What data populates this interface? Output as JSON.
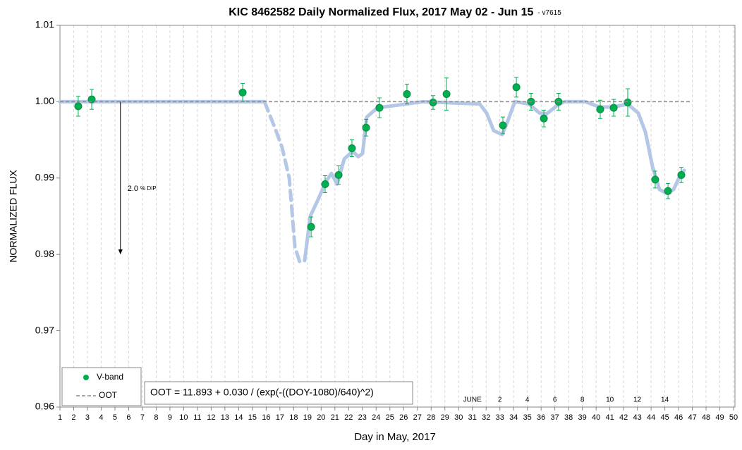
{
  "chart_data": {
    "type": "scatter",
    "title": "KIC 8462582 Daily Normalized Flux, 2017 May 02 - Jun 15",
    "subtitle": "- v7615",
    "x_label": "Day in May, 2017",
    "y_label": "NORMALIZED FLUX",
    "xlim": [
      1,
      50.1
    ],
    "ylim": [
      0.96,
      1.01
    ],
    "xticks": [
      1,
      2,
      3,
      4,
      5,
      6,
      7,
      8,
      9,
      10,
      11,
      12,
      13,
      14,
      15,
      16,
      17,
      18,
      19,
      20,
      21,
      22,
      23,
      24,
      25,
      26,
      27,
      28,
      29,
      30,
      31,
      32,
      33,
      34,
      35,
      36,
      37,
      38,
      39,
      40,
      41,
      42,
      43,
      44,
      45,
      46,
      47,
      48,
      49,
      50
    ],
    "yticks": [
      0.96,
      0.97,
      0.98,
      0.99,
      {
        "value": 1,
        "label": "1.00"
      },
      1.01
    ],
    "x_grid": true,
    "series": [
      {
        "name": "V-band",
        "color": "#00b050",
        "x": [
          2.33,
          3.31,
          14.29,
          19.27,
          20.29,
          21.27,
          22.24,
          23.27,
          24.24,
          26.24,
          28.14,
          29.12,
          33.22,
          34.2,
          35.27,
          36.2,
          37.27,
          40.3,
          41.28,
          42.3,
          44.3,
          45.23,
          46.2
        ],
        "values": [
          0.9994,
          1.0003,
          1.0012,
          0.9836,
          0.9892,
          0.9904,
          0.9939,
          0.9966,
          0.9992,
          1.001,
          0.9999,
          1.001,
          0.9969,
          1.0019,
          1.0,
          0.9978,
          1.0,
          0.999,
          0.9992,
          0.9999,
          0.9898,
          0.9883,
          0.9904
        ],
        "errors": [
          0.0013,
          0.0013,
          0.0012,
          0.0013,
          0.0011,
          0.0012,
          0.0011,
          0.0011,
          0.0013,
          0.0013,
          0.0009,
          0.0021,
          0.0011,
          0.0013,
          0.0011,
          0.0011,
          0.0011,
          0.0012,
          0.0011,
          0.0018,
          0.0011,
          0.001,
          0.001
        ]
      },
      {
        "name": "OOT",
        "color": "#8c8c8c",
        "dashed": true,
        "x": [
          1,
          46.9
        ],
        "values": [
          1,
          1
        ]
      }
    ],
    "curves": [
      {
        "color": "#b4c7e7",
        "dashed": false,
        "x": [
          1,
          15.88
        ],
        "values": [
          1,
          1
        ]
      },
      {
        "color": "#b4c7e7",
        "dashed": true,
        "x": [
          15.88,
          16.65,
          17.16,
          17.68,
          18.09,
          18.44,
          18.8
        ],
        "values": [
          1,
          0.9965,
          0.994,
          0.99,
          0.981,
          0.979,
          0.9792
        ]
      },
      {
        "color": "#b4c7e7",
        "dashed": false,
        "x": [
          18.8,
          19.21,
          19.73,
          20.34,
          20.75,
          21.16,
          21.68,
          22.29,
          22.7,
          23.01,
          23.32,
          24.09,
          25.37,
          27.42,
          31.53,
          32.04,
          32.55,
          33.17,
          33.58,
          34.09,
          35.12,
          35.89,
          36.4,
          37.17,
          37.69,
          39.22,
          40.25,
          41.28,
          42.3,
          43.07,
          43.59,
          44.1,
          44.61,
          45.13,
          45.64,
          46.15,
          46.41
        ],
        "values": [
          0.9792,
          0.985,
          0.987,
          0.9895,
          0.9906,
          0.9892,
          0.9925,
          0.9935,
          0.9928,
          0.9932,
          0.998,
          0.9992,
          0.9995,
          1,
          0.9997,
          0.9985,
          0.9962,
          0.9957,
          0.9975,
          1,
          0.9997,
          0.9985,
          0.9984,
          0.9995,
          1,
          1,
          0.9993,
          0.9993,
          0.9997,
          0.9985,
          0.996,
          0.9915,
          0.9885,
          0.988,
          0.9885,
          0.9905,
          0.991
        ]
      }
    ],
    "dip_arrow": {
      "x": 5.4,
      "from": 1,
      "to": 0.98,
      "label": "2.0",
      "unit_label": "% DIP"
    },
    "formula": "OOT = 11.893 + 0.030 / (exp(-((DOY-1080)/640)^2)",
    "june_labels": {
      "x": [
        31,
        33,
        35,
        37,
        39,
        41,
        43,
        45
      ],
      "labels": [
        "JUNE",
        "2",
        "4",
        "6",
        "8",
        "10",
        "12",
        "14"
      ]
    }
  }
}
